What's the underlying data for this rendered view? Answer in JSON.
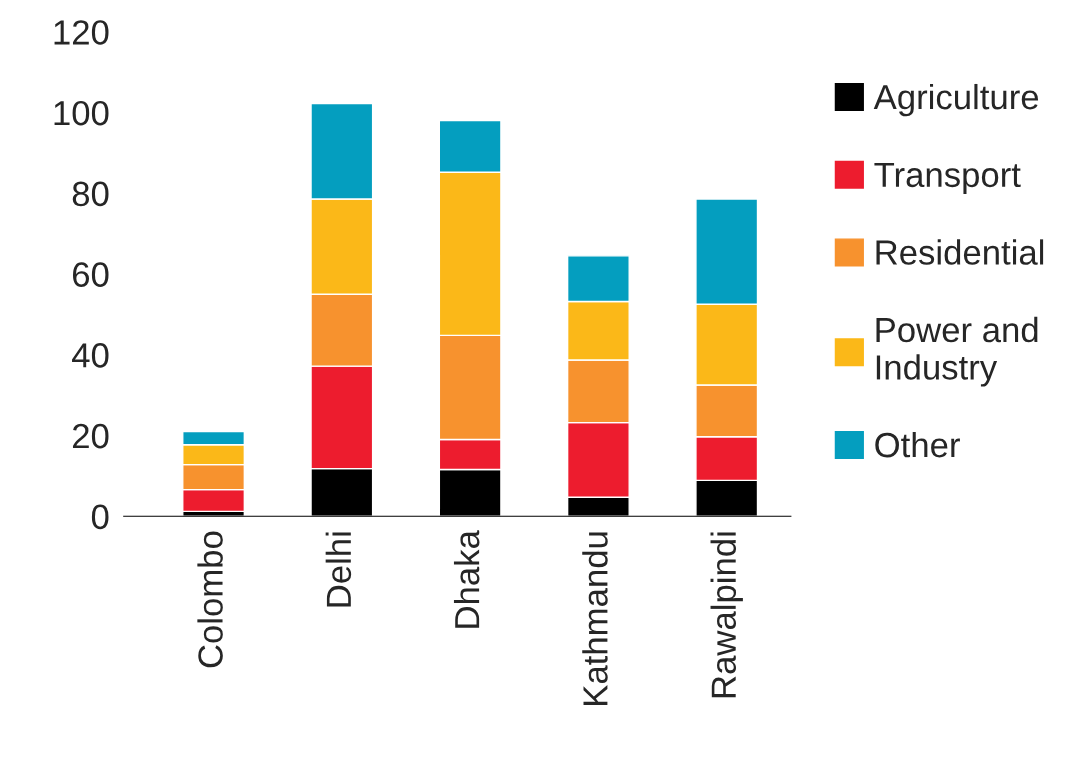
{
  "chart_data": {
    "type": "bar",
    "stacked": true,
    "categories": [
      "Colombo",
      "Delhi",
      "Dhaka",
      "Kathmandu",
      "Rawalpindi"
    ],
    "series": [
      {
        "name": "Agriculture",
        "color": "#000000",
        "values": [
          1.2,
          11.8,
          11.6,
          4.7,
          8.9
        ]
      },
      {
        "name": "Transport",
        "color": "#ed1c2e",
        "values": [
          5.4,
          25.4,
          7.4,
          18.5,
          10.8
        ]
      },
      {
        "name": "Residential",
        "color": "#f7922e",
        "values": [
          6.2,
          17.8,
          25.8,
          15.5,
          12.8
        ]
      },
      {
        "name": "Power and\nIndustry",
        "color": "#fbb818",
        "values": [
          4.9,
          23.6,
          40.4,
          14.5,
          20
        ]
      },
      {
        "name": "Other",
        "color": "#049ebf",
        "values": [
          3.3,
          23.6,
          12.8,
          11.3,
          26.1
        ]
      }
    ],
    "ylim": [
      0,
      120
    ],
    "yticks": [
      0,
      20,
      40,
      60,
      80,
      100,
      120
    ],
    "grid": false,
    "legend": "right"
  }
}
